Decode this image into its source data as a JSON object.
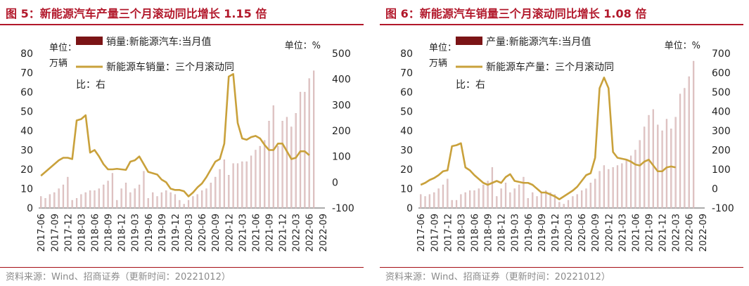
{
  "figures": [
    {
      "title": "图 5：新能源汽车产量三个月滚动同比增长 1.15 倍",
      "source": "资料来源：Wind、招商证券（更新时间：20221012）",
      "unit_left": "单位：\n万辆",
      "unit_right": "单位：%",
      "colors": {
        "bar": "#7b1416",
        "bar_fill": "#e3c8c8",
        "line": "#c9a13b",
        "title": "#b2182b"
      },
      "chart_data": {
        "type": "bar+line",
        "legend_position": "top-left",
        "y_left_ticks": [
          "0",
          "10",
          "20",
          "30",
          "40",
          "50",
          "60",
          "70",
          "80"
        ],
        "y_left_lim": [
          0,
          80
        ],
        "y_right_ticks": [
          "-100",
          "0",
          "100",
          "200",
          "300",
          "400",
          "500"
        ],
        "y_right_lim": [
          -100,
          500
        ],
        "x_tick_labels": [
          "2017-06",
          "2017-09",
          "2017-12",
          "2018-03",
          "2018-06",
          "2018-09",
          "2018-12",
          "2019-03",
          "2019-06",
          "2019-09",
          "2019-12",
          "2020-03",
          "2020-06",
          "2020-09",
          "2020-12",
          "2021-03",
          "2021-06",
          "2021-09",
          "2021-12",
          "2022-03",
          "2022-06",
          "2022-09"
        ],
        "series": [
          {
            "name": "销量:新能源汽车:当月值",
            "type": "bar",
            "axis": "left",
            "start": "2017-06",
            "values": [
              6,
              5,
              7,
              8,
              10,
              12,
              16,
              4,
              5,
              7,
              8,
              9,
              9,
              10,
              12,
              14,
              18,
              4,
              10,
              13,
              8,
              10,
              12,
              19,
              5,
              8,
              6,
              8,
              9,
              8,
              7,
              4,
              2,
              4,
              6,
              7,
              9,
              10,
              13,
              16,
              20,
              25,
              17,
              23,
              23,
              24,
              24,
              27,
              30,
              32,
              35,
              45,
              53,
              32,
              45,
              47,
              42,
              49,
              60,
              60,
              67,
              71
            ]
          },
          {
            "name": "新能源车销量：三个月滚动同比：右",
            "type": "line",
            "axis": "right",
            "start": "2017-06",
            "values": [
              25,
              40,
              55,
              70,
              85,
              95,
              95,
              90,
              240,
              245,
              260,
              115,
              125,
              100,
              70,
              50,
              50,
              52,
              50,
              48,
              80,
              85,
              100,
              70,
              40,
              35,
              30,
              10,
              0,
              -25,
              -30,
              -30,
              -35,
              -55,
              -40,
              -20,
              -5,
              20,
              50,
              80,
              90,
              150,
              410,
              420,
              230,
              170,
              165,
              175,
              180,
              170,
              145,
              125,
              125,
              150,
              150,
              120,
              90,
              95,
              120,
              120,
              105
            ]
          }
        ]
      }
    },
    {
      "title": "图 6：新能源汽车销量三个月滚动同比增长 1.08 倍",
      "source": "资料来源：Wind、招商证券（更新时间：20221012）",
      "unit_left": "单位：\n万辆",
      "unit_right": "单位：%",
      "colors": {
        "bar": "#7b1416",
        "bar_fill": "#e3c8c8",
        "line": "#c9a13b",
        "title": "#b2182b"
      },
      "chart_data": {
        "type": "bar+line",
        "legend_position": "top-left",
        "y_left_ticks": [
          "0",
          "10",
          "20",
          "30",
          "40",
          "50",
          "60",
          "70",
          "80"
        ],
        "y_left_lim": [
          0,
          80
        ],
        "y_right_ticks": [
          "-100",
          "0",
          "100",
          "200",
          "300",
          "400",
          "500",
          "600",
          "700"
        ],
        "y_right_lim": [
          -100,
          700
        ],
        "x_tick_labels": [
          "2017-06",
          "2017-09",
          "2017-12",
          "2018-03",
          "2018-06",
          "2018-09",
          "2018-12",
          "2019-03",
          "2019-06",
          "2019-09",
          "2019-12",
          "2020-03",
          "2020-06",
          "2020-09",
          "2020-12",
          "2021-03",
          "2021-06",
          "2021-09",
          "2021-12",
          "2022-03",
          "2022-06",
          "2022-09"
        ],
        "series": [
          {
            "name": "产量:新能源汽车:当月值",
            "type": "bar",
            "axis": "left",
            "start": "2017-06",
            "values": [
              7,
              6,
              7,
              8,
              10,
              12,
              15,
              4,
              4,
              7,
              8,
              9,
              9,
              10,
              12,
              14,
              21,
              6,
              10,
              13,
              8,
              10,
              12,
              16,
              5,
              8,
              6,
              8,
              9,
              8,
              7,
              3,
              2,
              4,
              6,
              7,
              9,
              10,
              13,
              15,
              19,
              22,
              20,
              21,
              22,
              23,
              25,
              27,
              30,
              35,
              42,
              48,
              51,
              43,
              40,
              46,
              41,
              47,
              59,
              62,
              68,
              76
            ]
          },
          {
            "name": "新能源车产量：三个月滚动同比：右",
            "type": "line",
            "axis": "right",
            "start": "2017-06",
            "values": [
              20,
              30,
              45,
              55,
              70,
              90,
              95,
              220,
              225,
              235,
              110,
              95,
              70,
              50,
              30,
              20,
              30,
              40,
              30,
              60,
              75,
              40,
              35,
              30,
              30,
              20,
              0,
              -20,
              -20,
              -30,
              -40,
              -55,
              -40,
              -25,
              -10,
              10,
              40,
              70,
              80,
              160,
              520,
              575,
              520,
              190,
              160,
              155,
              150,
              140,
              125,
              120,
              140,
              150,
              120,
              90,
              90,
              110,
              115,
              110
            ]
          }
        ]
      }
    }
  ]
}
